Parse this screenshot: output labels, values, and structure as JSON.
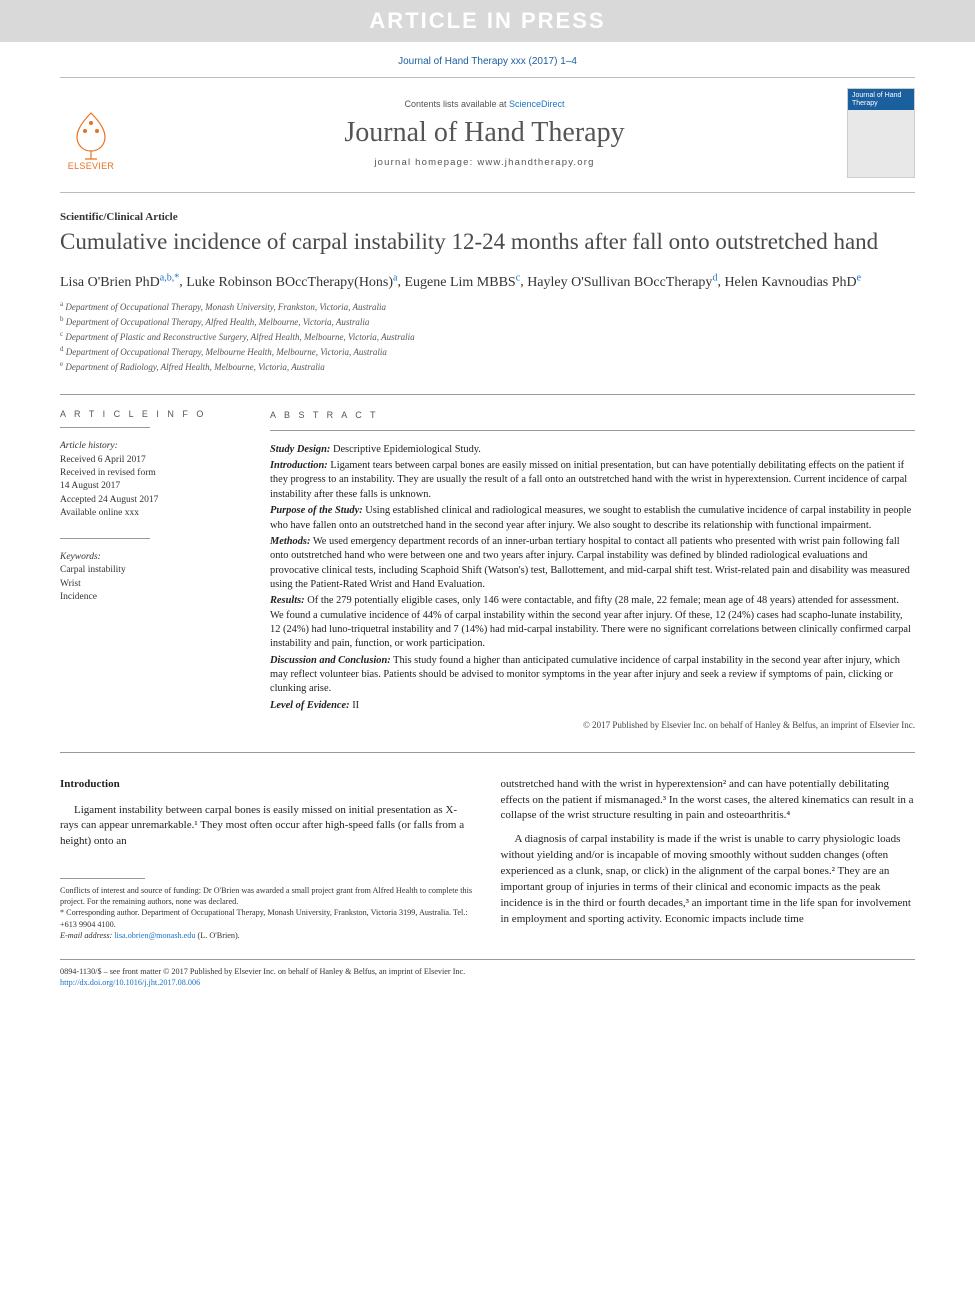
{
  "banner": {
    "text": "ARTICLE IN PRESS"
  },
  "citation": "Journal of Hand Therapy xxx (2017) 1–4",
  "header": {
    "elsevier": "ELSEVIER",
    "contents_prefix": "Contents lists available at ",
    "contents_link": "ScienceDirect",
    "journal_name": "Journal of Hand Therapy",
    "homepage_prefix": "journal homepage: ",
    "homepage": "www.jhandtherapy.org",
    "cover_title": "Journal of\nHand Therapy"
  },
  "article": {
    "type": "Scientific/Clinical Article",
    "title": "Cumulative incidence of carpal instability 12-24 months after fall onto outstretched hand"
  },
  "authors": [
    {
      "name": "Lisa O'Brien PhD",
      "aff": "a,b,*"
    },
    {
      "name": "Luke Robinson BOccTherapy(Hons)",
      "aff": "a"
    },
    {
      "name": "Eugene Lim MBBS",
      "aff": "c"
    },
    {
      "name": "Hayley O'Sullivan BOccTherapy",
      "aff": "d"
    },
    {
      "name": "Helen Kavnoudias PhD",
      "aff": "e"
    }
  ],
  "affiliations": [
    {
      "sup": "a",
      "text": "Department of Occupational Therapy, Monash University, Frankston, Victoria, Australia"
    },
    {
      "sup": "b",
      "text": "Department of Occupational Therapy, Alfred Health, Melbourne, Victoria, Australia"
    },
    {
      "sup": "c",
      "text": "Department of Plastic and Reconstructive Surgery, Alfred Health, Melbourne, Victoria, Australia"
    },
    {
      "sup": "d",
      "text": "Department of Occupational Therapy, Melbourne Health, Melbourne, Victoria, Australia"
    },
    {
      "sup": "e",
      "text": "Department of Radiology, Alfred Health, Melbourne, Victoria, Australia"
    }
  ],
  "article_info": {
    "label": "A R T I C L E  I N F O",
    "history_label": "Article history:",
    "history": [
      "Received 6 April 2017",
      "Received in revised form",
      "14 August 2017",
      "Accepted 24 August 2017",
      "Available online xxx"
    ],
    "keywords_label": "Keywords:",
    "keywords": [
      "Carpal instability",
      "Wrist",
      "Incidence"
    ]
  },
  "abstract": {
    "label": "A B S T R A C T",
    "items": [
      {
        "label": "Study Design:",
        "text": " Descriptive Epidemiological Study."
      },
      {
        "label": "Introduction:",
        "text": " Ligament tears between carpal bones are easily missed on initial presentation, but can have potentially debilitating effects on the patient if they progress to an instability. They are usually the result of a fall onto an outstretched hand with the wrist in hyperextension. Current incidence of carpal instability after these falls is unknown."
      },
      {
        "label": "Purpose of the Study:",
        "text": " Using established clinical and radiological measures, we sought to establish the cumulative incidence of carpal instability in people who have fallen onto an outstretched hand in the second year after injury. We also sought to describe its relationship with functional impairment."
      },
      {
        "label": "Methods:",
        "text": " We used emergency department records of an inner-urban tertiary hospital to contact all patients who presented with wrist pain following fall onto outstretched hand who were between one and two years after injury. Carpal instability was defined by blinded radiological evaluations and provocative clinical tests, including Scaphoid Shift (Watson's) test, Ballottement, and mid-carpal shift test. Wrist-related pain and disability was measured using the Patient-Rated Wrist and Hand Evaluation."
      },
      {
        "label": "Results:",
        "text": " Of the 279 potentially eligible cases, only 146 were contactable, and fifty (28 male, 22 female; mean age of 48 years) attended for assessment. We found a cumulative incidence of 44% of carpal instability within the second year after injury. Of these, 12 (24%) cases had scapho-lunate instability, 12 (24%) had luno-triquetral instability and 7 (14%) had mid-carpal instability. There were no significant correlations between clinically confirmed carpal instability and pain, function, or work participation."
      },
      {
        "label": "Discussion and Conclusion:",
        "text": " This study found a higher than anticipated cumulative incidence of carpal instability in the second year after injury, which may reflect volunteer bias. Patients should be advised to monitor symptoms in the year after injury and seek a review if symptoms of pain, clicking or clunking arise."
      },
      {
        "label": "Level of Evidence:",
        "text": " II"
      }
    ],
    "copyright": "© 2017 Published by Elsevier Inc. on behalf of Hanley & Belfus, an imprint of Elsevier Inc."
  },
  "body": {
    "intro_heading": "Introduction",
    "col1_p1": "Ligament instability between carpal bones is easily missed on initial presentation as X-rays can appear unremarkable.¹ They most often occur after high-speed falls (or falls from a height) onto an",
    "col2_p1": "outstretched hand with the wrist in hyperextension² and can have potentially debilitating effects on the patient if mismanaged.³ In the worst cases, the altered kinematics can result in a collapse of the wrist structure resulting in pain and osteoarthritis.⁴",
    "col2_p2": "A diagnosis of carpal instability is made if the wrist is unable to carry physiologic loads without yielding and/or is incapable of moving smoothly without sudden changes (often experienced as a clunk, snap, or click) in the alignment of the carpal bones.² They are an important group of injuries in terms of their clinical and economic impacts as the peak incidence is in the third or fourth decades,³ an important time in the life span for involvement in employment and sporting activity. Economic impacts include time"
  },
  "footnotes": {
    "conflict": "Conflicts of interest and source of funding: Dr O'Brien was awarded a small project grant from Alfred Health to complete this project. For the remaining authors, none was declared.",
    "corresponding": "* Corresponding author. Department of Occupational Therapy, Monash University, Frankston, Victoria 3199, Australia. Tel.: +613 9904 4100.",
    "email_label": "E-mail address: ",
    "email": "lisa.obrien@monash.edu",
    "email_suffix": " (L. O'Brien)."
  },
  "footer": {
    "line1": "0894-1130/$ – see front matter © 2017 Published by Elsevier Inc. on behalf of Hanley & Belfus, an imprint of Elsevier Inc.",
    "doi": "http://dx.doi.org/10.1016/j.jht.2017.08.006"
  },
  "colors": {
    "link": "#1a73c7",
    "banner_bg": "#d9d9d9",
    "orange": "#e9711c",
    "blue_dark": "#1a5f9e"
  }
}
